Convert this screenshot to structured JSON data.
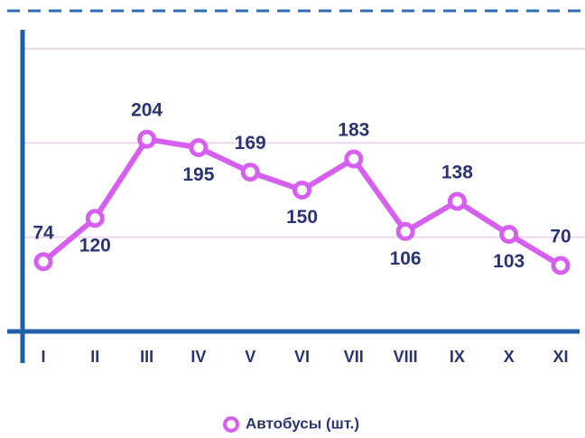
{
  "chart_data": {
    "type": "line",
    "categories": [
      "I",
      "II",
      "III",
      "IV",
      "V",
      "VI",
      "VII",
      "VIII",
      "IX",
      "X",
      "XI"
    ],
    "series": [
      {
        "name": "Автобусы (шт.)",
        "color": "#d65ff0",
        "values": [
          74,
          120,
          204,
          195,
          169,
          150,
          183,
          106,
          138,
          103,
          70
        ]
      }
    ],
    "ylim": [
      0,
      320
    ],
    "yticks": [
      100,
      200,
      300
    ],
    "grid": true,
    "legend": "bottom"
  }
}
